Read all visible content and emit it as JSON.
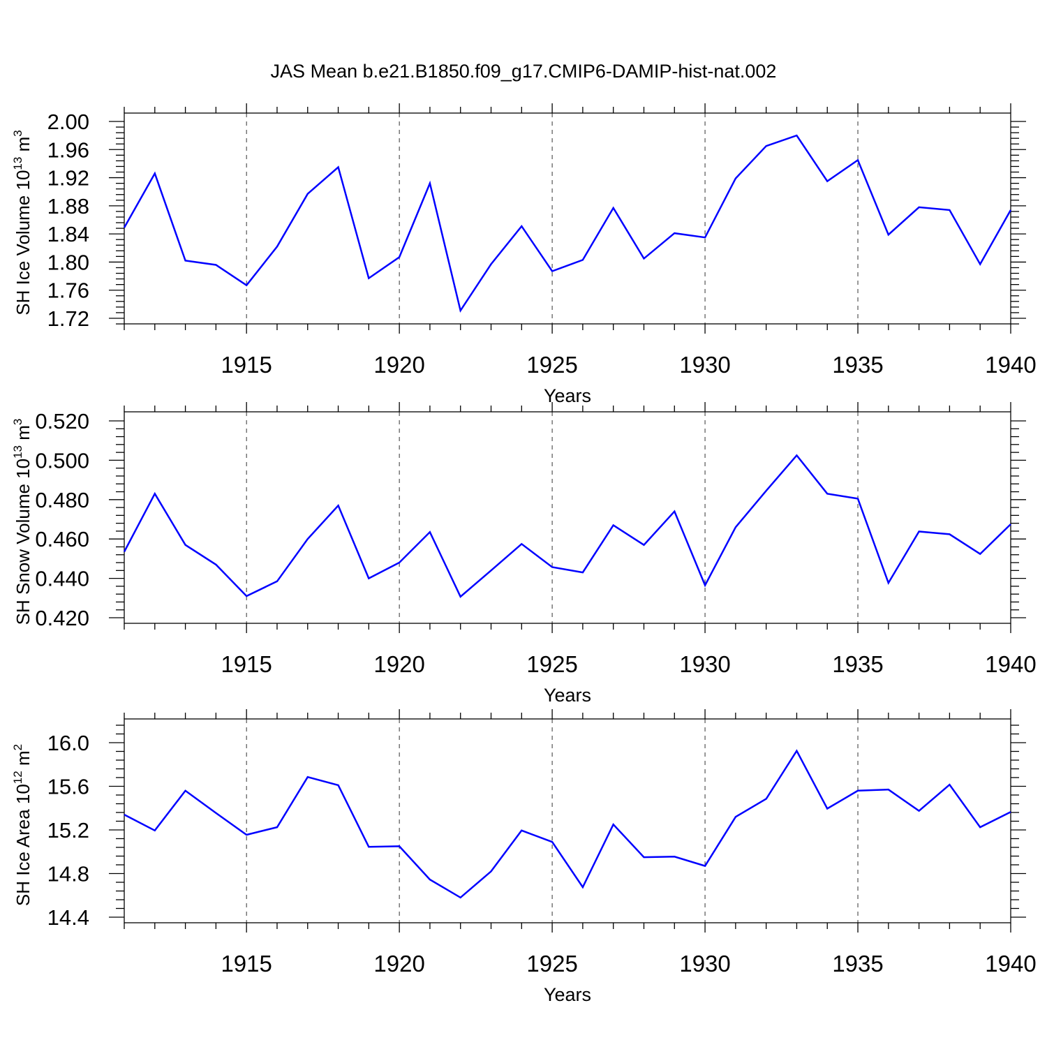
{
  "title": "JAS Mean b.e21.B1850.f09_g17.CMIP6-DAMIP-hist-nat.002",
  "chart_data": [
    {
      "type": "line",
      "name": "ice-volume",
      "ylabel": "SH Ice Volume 10",
      "ylabel_exp": "13",
      "ylabel_unit": " m",
      "ylabel_unit_exp": "3",
      "xlabel": "Years",
      "xlim": [
        1911,
        1940
      ],
      "ylim": [
        1.72,
        2.0
      ],
      "yticks": [
        "1.72",
        "1.76",
        "1.80",
        "1.84",
        "1.88",
        "1.92",
        "1.96",
        "2.00"
      ],
      "xticks": [
        "1915",
        "1920",
        "1925",
        "1930",
        "1935",
        "1940"
      ],
      "x": [
        1911,
        1912,
        1913,
        1914,
        1915,
        1916,
        1917,
        1918,
        1919,
        1920,
        1921,
        1922,
        1923,
        1924,
        1925,
        1926,
        1927,
        1928,
        1929,
        1930,
        1931,
        1932,
        1933,
        1934,
        1935,
        1936,
        1937,
        1938,
        1939,
        1940
      ],
      "values": [
        1.849,
        1.926,
        1.802,
        1.796,
        1.767,
        1.822,
        1.897,
        1.935,
        1.777,
        1.807,
        1.912,
        1.731,
        1.797,
        1.851,
        1.787,
        1.803,
        1.877,
        1.805,
        1.841,
        1.835,
        1.919,
        1.965,
        1.98,
        1.915,
        1.945,
        1.839,
        1.878,
        1.874,
        1.797,
        1.874
      ]
    },
    {
      "type": "line",
      "name": "snow-volume",
      "ylabel": "SH Snow Volume 10",
      "ylabel_exp": "13",
      "ylabel_unit": " m",
      "ylabel_unit_exp": "3",
      "xlabel": "Years",
      "xlim": [
        1911,
        1940
      ],
      "ylim": [
        0.42,
        0.52
      ],
      "yticks": [
        "0.420",
        "0.440",
        "0.460",
        "0.480",
        "0.500",
        "0.520"
      ],
      "xticks": [
        "1915",
        "1920",
        "1925",
        "1930",
        "1935",
        "1940"
      ],
      "x": [
        1911,
        1912,
        1913,
        1914,
        1915,
        1916,
        1917,
        1918,
        1919,
        1920,
        1921,
        1922,
        1923,
        1924,
        1925,
        1926,
        1927,
        1928,
        1929,
        1930,
        1931,
        1932,
        1933,
        1934,
        1935,
        1936,
        1937,
        1938,
        1939,
        1940
      ],
      "values": [
        0.4535,
        0.483,
        0.457,
        0.447,
        0.431,
        0.4385,
        0.46,
        0.477,
        0.44,
        0.448,
        0.4635,
        0.4307,
        0.444,
        0.4575,
        0.4457,
        0.443,
        0.467,
        0.457,
        0.474,
        0.4365,
        0.466,
        0.4845,
        0.5025,
        0.483,
        0.4805,
        0.4377,
        0.4638,
        0.4624,
        0.4524,
        0.4675
      ]
    },
    {
      "type": "line",
      "name": "ice-area",
      "ylabel": "SH Ice Area 10",
      "ylabel_exp": "12",
      "ylabel_unit": " m",
      "ylabel_unit_exp": "2",
      "xlabel": "Years",
      "xlim": [
        1911,
        1940
      ],
      "ylim": [
        14.4,
        16.2
      ],
      "yticks": [
        "14.4",
        "14.8",
        "15.2",
        "15.6",
        "16.0"
      ],
      "xticks": [
        "1915",
        "1920",
        "1925",
        "1930",
        "1935",
        "1940"
      ],
      "x": [
        1911,
        1912,
        1913,
        1914,
        1915,
        1916,
        1917,
        1918,
        1919,
        1920,
        1921,
        1922,
        1923,
        1924,
        1925,
        1926,
        1927,
        1928,
        1929,
        1930,
        1931,
        1932,
        1933,
        1934,
        1935,
        1936,
        1937,
        1938,
        1939,
        1940
      ],
      "values": [
        15.34,
        15.195,
        15.56,
        15.355,
        15.155,
        15.225,
        15.685,
        15.61,
        15.045,
        15.05,
        14.745,
        14.58,
        14.82,
        15.195,
        15.09,
        14.675,
        15.25,
        14.95,
        14.955,
        14.87,
        15.32,
        15.485,
        15.925,
        15.395,
        15.56,
        15.57,
        15.375,
        15.615,
        15.225,
        15.365
      ]
    }
  ]
}
